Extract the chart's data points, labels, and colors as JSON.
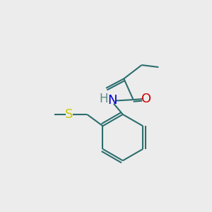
{
  "bg_color": "#ececec",
  "bond_color": "#2d6e6e",
  "N_color": "#0000cc",
  "O_color": "#cc0000",
  "S_color": "#cccc00",
  "H_color": "#5a8a8a",
  "line_width": 1.5,
  "font_size": 12,
  "figsize": [
    3.0,
    3.0
  ],
  "dpi": 100,
  "xlim": [
    0,
    10
  ],
  "ylim": [
    0,
    10
  ]
}
